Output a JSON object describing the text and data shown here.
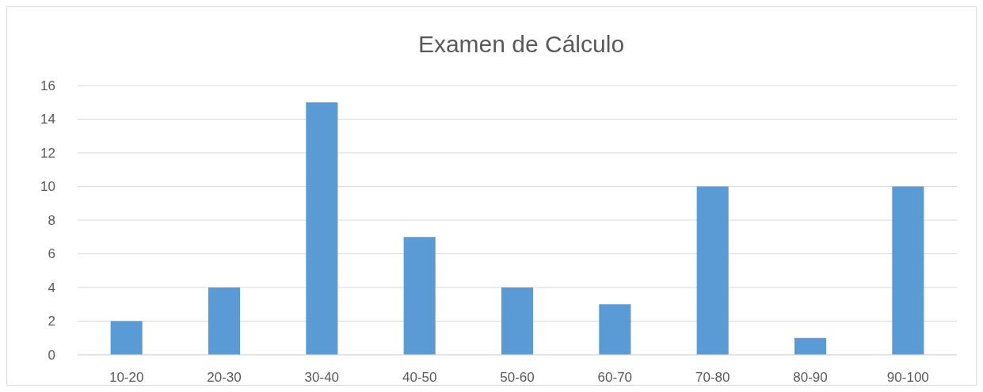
{
  "chart_data": {
    "type": "bar",
    "title": "Examen de Cálculo",
    "categories": [
      "10-20",
      "20-30",
      "30-40",
      "40-50",
      "50-60",
      "60-70",
      "70-80",
      "80-90",
      "90-100"
    ],
    "values": [
      2,
      4,
      15,
      7,
      4,
      3,
      10,
      1,
      10
    ],
    "color": "#5b9bd5",
    "ylim": [
      0,
      16
    ],
    "yticks": [
      0,
      2,
      4,
      6,
      8,
      10,
      12,
      14,
      16
    ],
    "grid": "y"
  }
}
